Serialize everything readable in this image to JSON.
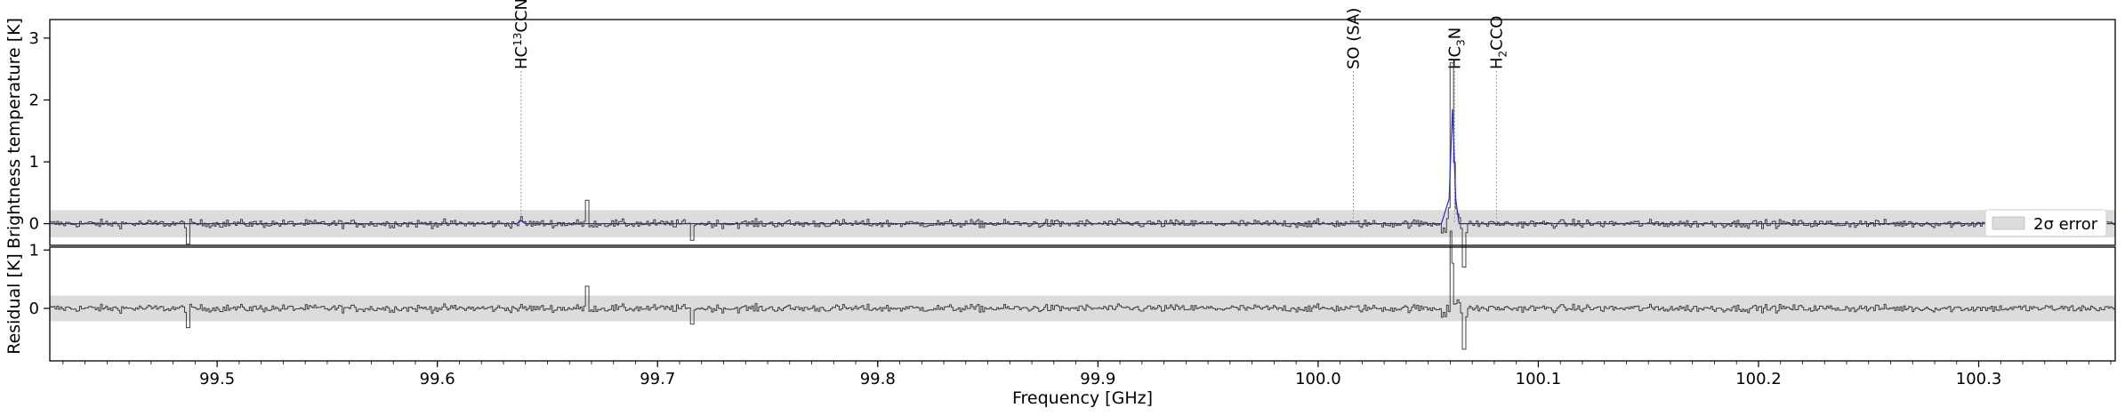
{
  "chart_data": [
    {
      "type": "line",
      "panel": "spectrum",
      "ylabel": "Brightness temperature [K]",
      "xlim": [
        99.424,
        100.362
      ],
      "ylim": [
        -0.35,
        3.3
      ],
      "yticks": [
        0,
        1,
        2,
        3
      ],
      "grid": false,
      "series": [
        {
          "role": "observed",
          "style": "steps",
          "color": "#404040"
        },
        {
          "role": "model",
          "color": "#2b2bcf",
          "x": [
            99.424,
            99.636,
            99.638,
            99.64,
            100.056,
            100.0595,
            100.061,
            100.0625,
            100.064,
            100.362
          ],
          "y": [
            0,
            0,
            0.05,
            0,
            0,
            0.4,
            1.85,
            0.4,
            0,
            0
          ]
        }
      ],
      "error_band": {
        "label": "2σ error",
        "half_width": 0.22,
        "color": "#dcdcdc"
      },
      "legend": {
        "position": "lower-right",
        "entries": [
          "2σ error"
        ]
      },
      "line_labels": [
        {
          "freq": 99.638,
          "base": "HC",
          "sup": "13",
          "rest": "CCN"
        },
        {
          "freq": 100.016,
          "base": "SO (SA)",
          "sup": "",
          "rest": ""
        },
        {
          "freq": 100.062,
          "base": "HC",
          "sub": "3",
          "rest": "N"
        },
        {
          "freq": 100.081,
          "base": "H",
          "sub": "2",
          "rest": "CCO"
        }
      ]
    },
    {
      "type": "line",
      "panel": "residual",
      "ylabel": "Residual [K]",
      "xlabel": "Frequency [GHz]",
      "xlim": [
        99.424,
        100.362
      ],
      "ylim": [
        -0.9,
        1.05
      ],
      "yticks": [
        0,
        1
      ],
      "xticks": [
        99.5,
        99.6,
        99.7,
        99.8,
        99.9,
        100.0,
        100.1,
        100.2,
        100.3
      ],
      "xtick_labels": [
        "99.5",
        "99.6",
        "99.7",
        "99.8",
        "99.9",
        "100.0",
        "100.1",
        "100.2",
        "100.3"
      ],
      "grid": false,
      "error_band": {
        "half_width": 0.22,
        "color": "#dcdcdc"
      }
    }
  ]
}
